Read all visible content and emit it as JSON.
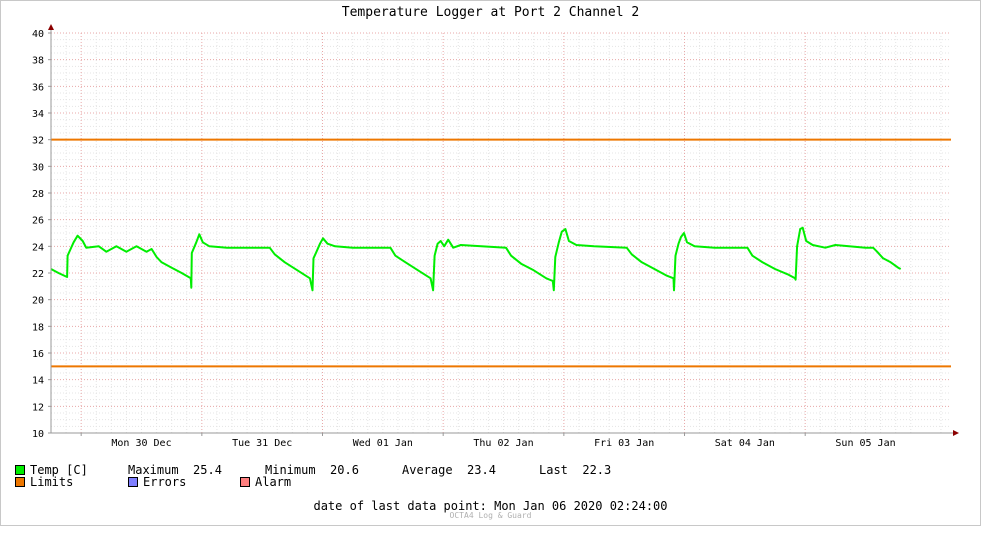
{
  "title": "Temperature Logger at Port 2 Channel 2",
  "chart_data": {
    "type": "line",
    "title": "Temperature Logger at Port 2 Channel 2",
    "ylim": [
      10,
      40
    ],
    "yticks": [
      "10",
      "12",
      "14",
      "16",
      "18",
      "20",
      "22",
      "24",
      "26",
      "28",
      "30",
      "32",
      "34",
      "36",
      "38",
      "40"
    ],
    "xrange_hours": [
      0,
      179
    ],
    "xticks": [
      {
        "label": "Mon 30 Dec",
        "hour": 6
      },
      {
        "label": "Tue 31 Dec",
        "hour": 30
      },
      {
        "label": "Wed 01 Jan",
        "hour": 54
      },
      {
        "label": "Thu 02 Jan",
        "hour": 78
      },
      {
        "label": "Fri 03 Jan",
        "hour": 102
      },
      {
        "label": "Sat 04 Jan",
        "hour": 126
      },
      {
        "label": "Sun 05 Jan",
        "hour": 150
      }
    ],
    "grid": true,
    "limits": {
      "upper": 32,
      "lower": 15
    },
    "series": [
      {
        "name": "Temp [C]",
        "color": "#00ee00",
        "points": [
          [
            0,
            22.3
          ],
          [
            1.5,
            22.0
          ],
          [
            3.2,
            21.7
          ],
          [
            3.3,
            23.3
          ],
          [
            3.9,
            23.8
          ],
          [
            4.5,
            24.3
          ],
          [
            5.3,
            24.8
          ],
          [
            6.3,
            24.4
          ],
          [
            7.0,
            23.9
          ],
          [
            9.5,
            24.0
          ],
          [
            11.0,
            23.6
          ],
          [
            13.0,
            24.0
          ],
          [
            15.0,
            23.6
          ],
          [
            17.0,
            24.0
          ],
          [
            19.0,
            23.6
          ],
          [
            20.0,
            23.8
          ],
          [
            21.0,
            23.2
          ],
          [
            22.0,
            22.8
          ],
          [
            24.0,
            22.4
          ],
          [
            26.0,
            22.0
          ],
          [
            27.8,
            21.6
          ],
          [
            27.9,
            20.9
          ],
          [
            28.0,
            23.5
          ],
          [
            28.9,
            24.3
          ],
          [
            29.5,
            24.9
          ],
          [
            30.2,
            24.3
          ],
          [
            31.5,
            24.0
          ],
          [
            35.0,
            23.9
          ],
          [
            43.5,
            23.9
          ],
          [
            44.5,
            23.4
          ],
          [
            46.5,
            22.8
          ],
          [
            49.0,
            22.2
          ],
          [
            51.5,
            21.6
          ],
          [
            52.0,
            20.7
          ],
          [
            52.2,
            23.1
          ],
          [
            52.8,
            23.6
          ],
          [
            53.5,
            24.2
          ],
          [
            54.1,
            24.6
          ],
          [
            55.0,
            24.2
          ],
          [
            56.5,
            24.0
          ],
          [
            60.0,
            23.9
          ],
          [
            67.5,
            23.9
          ],
          [
            68.5,
            23.3
          ],
          [
            70.5,
            22.8
          ],
          [
            73.0,
            22.2
          ],
          [
            75.5,
            21.6
          ],
          [
            76.0,
            20.7
          ],
          [
            76.3,
            23.3
          ],
          [
            76.9,
            24.2
          ],
          [
            77.5,
            24.4
          ],
          [
            78.2,
            24.0
          ],
          [
            79.0,
            24.5
          ],
          [
            80.0,
            23.9
          ],
          [
            81.5,
            24.1
          ],
          [
            90.5,
            23.9
          ],
          [
            91.5,
            23.3
          ],
          [
            93.5,
            22.7
          ],
          [
            96.0,
            22.2
          ],
          [
            98.5,
            21.6
          ],
          [
            99.8,
            21.4
          ],
          [
            100.0,
            20.7
          ],
          [
            100.3,
            23.2
          ],
          [
            101.0,
            24.3
          ],
          [
            101.6,
            25.1
          ],
          [
            102.3,
            25.3
          ],
          [
            103.0,
            24.4
          ],
          [
            104.5,
            24.1
          ],
          [
            108.0,
            24.0
          ],
          [
            114.5,
            23.9
          ],
          [
            115.5,
            23.4
          ],
          [
            117.5,
            22.8
          ],
          [
            120.0,
            22.3
          ],
          [
            122.5,
            21.8
          ],
          [
            123.8,
            21.6
          ],
          [
            123.9,
            20.7
          ],
          [
            124.2,
            23.3
          ],
          [
            124.8,
            24.2
          ],
          [
            125.3,
            24.7
          ],
          [
            125.9,
            25.0
          ],
          [
            126.5,
            24.3
          ],
          [
            128.0,
            24.0
          ],
          [
            132.0,
            23.9
          ],
          [
            138.5,
            23.9
          ],
          [
            139.5,
            23.3
          ],
          [
            141.5,
            22.8
          ],
          [
            144.0,
            22.3
          ],
          [
            146.5,
            21.9
          ],
          [
            148.0,
            21.6
          ],
          [
            148.1,
            21.5
          ],
          [
            148.4,
            24.0
          ],
          [
            149.0,
            25.3
          ],
          [
            149.5,
            25.4
          ],
          [
            150.2,
            24.4
          ],
          [
            151.5,
            24.1
          ],
          [
            154.0,
            23.9
          ],
          [
            156.0,
            24.1
          ],
          [
            162.0,
            23.9
          ],
          [
            163.5,
            23.9
          ],
          [
            164.3,
            23.6
          ],
          [
            165.5,
            23.1
          ],
          [
            167.0,
            22.8
          ],
          [
            168.5,
            22.4
          ],
          [
            169.0,
            22.3
          ]
        ]
      }
    ],
    "stats": {
      "maximum_label": "Maximum",
      "maximum": "25.4",
      "minimum_label": "Minimum",
      "minimum": "20.6",
      "average_label": "Average",
      "average": "23.4",
      "last_label": "Last",
      "last": "22.3"
    }
  },
  "legend": {
    "temp_label": "Temp [C]",
    "temp_color": "#00ee00",
    "limits_label": "Limits",
    "limits_color": "#ee7700",
    "errors_label": "Errors",
    "errors_color": "#7f7fff",
    "alarm_label": "Alarm",
    "alarm_color": "#ff7f7f"
  },
  "footer": {
    "last_point_label": "date of last data point:",
    "last_point_value": "Mon Jan 06 2020 02:24:00",
    "brand": "OCTA4 Log & Guard"
  }
}
